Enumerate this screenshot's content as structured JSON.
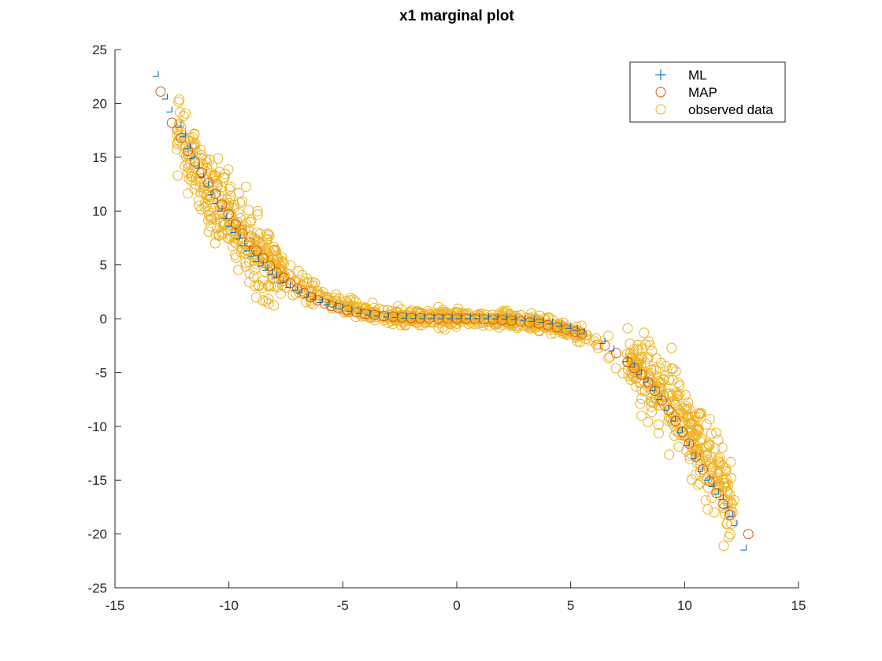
{
  "chart_data": {
    "type": "scatter",
    "title": "x1 marginal plot",
    "xlabel": "",
    "ylabel": "",
    "xlim": [
      -15,
      15
    ],
    "ylim": [
      -25,
      25
    ],
    "xticks": [
      -15,
      -10,
      -5,
      0,
      5,
      10,
      15
    ],
    "yticks": [
      -25,
      -20,
      -15,
      -10,
      -5,
      0,
      5,
      10,
      15,
      20,
      25
    ],
    "xtick_labels": [
      "-15",
      "-10",
      "-5",
      "0",
      "5",
      "10",
      "15"
    ],
    "ytick_labels": [
      "-25",
      "-20",
      "-15",
      "-10",
      "-5",
      "0",
      "5",
      "10",
      "15",
      "20",
      "25"
    ],
    "grid": false,
    "legend_position": "top-right",
    "series": [
      {
        "name": "ML",
        "marker": "plus",
        "color": "#0072BD",
        "points": [
          [
            -13.1,
            22.5
          ],
          [
            -12.7,
            20.4
          ],
          [
            -12.5,
            19.2
          ],
          [
            -12.1,
            17.8
          ],
          [
            -11.9,
            16.9
          ],
          [
            -11.7,
            15.8
          ],
          [
            -11.5,
            14.9
          ],
          [
            -11.3,
            14.0
          ],
          [
            -11.1,
            13.1
          ],
          [
            -10.9,
            12.3
          ],
          [
            -10.7,
            11.5
          ],
          [
            -10.5,
            10.7
          ],
          [
            -10.3,
            10.0
          ],
          [
            -10.1,
            9.3
          ],
          [
            -9.9,
            8.6
          ],
          [
            -9.7,
            8.0
          ],
          [
            -9.5,
            7.4
          ],
          [
            -9.3,
            6.8
          ],
          [
            -9.1,
            6.3
          ],
          [
            -8.9,
            5.8
          ],
          [
            -8.7,
            5.3
          ],
          [
            -8.5,
            4.9
          ],
          [
            -8.3,
            4.5
          ],
          [
            -8.1,
            4.1
          ],
          [
            -7.9,
            3.8
          ],
          [
            -7.6,
            3.3
          ],
          [
            -7.3,
            2.9
          ],
          [
            -7.0,
            2.6
          ],
          [
            -6.8,
            2.4
          ],
          [
            -6.5,
            2.0
          ],
          [
            -6.2,
            1.8
          ],
          [
            -5.9,
            1.5
          ],
          [
            -5.6,
            1.3
          ],
          [
            -5.3,
            1.1
          ],
          [
            -5.0,
            0.9
          ],
          [
            -4.6,
            0.7
          ],
          [
            -4.2,
            0.5
          ],
          [
            -3.8,
            0.35
          ],
          [
            -3.4,
            0.25
          ],
          [
            -3.0,
            0.15
          ],
          [
            -2.6,
            0.1
          ],
          [
            -2.2,
            0.05
          ],
          [
            -1.8,
            0.02
          ],
          [
            -1.4,
            0.0
          ],
          [
            -1.0,
            0.0
          ],
          [
            -0.6,
            0.0
          ],
          [
            -0.2,
            0.0
          ],
          [
            0.2,
            0.0
          ],
          [
            0.6,
            0.0
          ],
          [
            1.0,
            0.0
          ],
          [
            1.4,
            0.0
          ],
          [
            1.8,
            -0.02
          ],
          [
            2.2,
            -0.05
          ],
          [
            2.6,
            -0.1
          ],
          [
            3.0,
            -0.15
          ],
          [
            3.4,
            -0.25
          ],
          [
            3.8,
            -0.35
          ],
          [
            4.2,
            -0.5
          ],
          [
            4.6,
            -0.7
          ],
          [
            5.0,
            -0.9
          ],
          [
            5.3,
            -1.1
          ],
          [
            5.6,
            -1.4
          ],
          [
            6.5,
            -2.3
          ],
          [
            6.9,
            -3.0
          ],
          [
            7.5,
            -4.0
          ],
          [
            7.8,
            -4.5
          ],
          [
            8.1,
            -5.2
          ],
          [
            8.4,
            -5.9
          ],
          [
            8.7,
            -6.7
          ],
          [
            9.0,
            -7.5
          ],
          [
            9.3,
            -8.5
          ],
          [
            9.6,
            -9.5
          ],
          [
            9.9,
            -10.6
          ],
          [
            10.2,
            -11.8
          ],
          [
            10.5,
            -13.0
          ],
          [
            10.8,
            -14.2
          ],
          [
            11.1,
            -15.0
          ],
          [
            11.3,
            -15.6
          ],
          [
            11.5,
            -16.3
          ],
          [
            11.7,
            -16.8
          ],
          [
            11.9,
            -17.6
          ],
          [
            12.1,
            -18.4
          ],
          [
            12.3,
            -19.2
          ],
          [
            12.7,
            -21.5
          ]
        ]
      },
      {
        "name": "MAP",
        "marker": "circle",
        "color": "#D95319",
        "points": [
          [
            -13.0,
            21.1
          ],
          [
            -12.5,
            18.2
          ],
          [
            -12.1,
            16.8
          ],
          [
            -11.8,
            15.6
          ],
          [
            -11.5,
            14.6
          ],
          [
            -11.2,
            13.6
          ],
          [
            -10.9,
            12.6
          ],
          [
            -10.6,
            11.6
          ],
          [
            -10.3,
            10.6
          ],
          [
            -10.0,
            9.7
          ],
          [
            -9.7,
            8.8
          ],
          [
            -9.4,
            7.9
          ],
          [
            -9.1,
            7.1
          ],
          [
            -8.8,
            6.3
          ],
          [
            -8.5,
            5.6
          ],
          [
            -8.2,
            4.9
          ],
          [
            -7.9,
            4.3
          ],
          [
            -7.6,
            3.8
          ],
          [
            -7.3,
            3.3
          ],
          [
            -7.0,
            2.8
          ],
          [
            -6.7,
            2.4
          ],
          [
            -6.4,
            2.0
          ],
          [
            -6.1,
            1.7
          ],
          [
            -5.8,
            1.4
          ],
          [
            -5.5,
            1.2
          ],
          [
            -5.2,
            1.0
          ],
          [
            -4.8,
            0.8
          ],
          [
            -4.4,
            0.6
          ],
          [
            -4.0,
            0.45
          ],
          [
            -3.6,
            0.35
          ],
          [
            -3.2,
            0.25
          ],
          [
            -2.8,
            0.18
          ],
          [
            -2.4,
            0.12
          ],
          [
            -2.0,
            0.08
          ],
          [
            -1.6,
            0.05
          ],
          [
            -1.2,
            0.02
          ],
          [
            -0.8,
            0.0
          ],
          [
            -0.4,
            0.0
          ],
          [
            0.0,
            0.0
          ],
          [
            0.4,
            0.0
          ],
          [
            0.8,
            -0.02
          ],
          [
            1.2,
            -0.05
          ],
          [
            1.6,
            -0.08
          ],
          [
            2.0,
            -0.12
          ],
          [
            2.4,
            -0.18
          ],
          [
            2.8,
            -0.25
          ],
          [
            3.2,
            -0.35
          ],
          [
            3.6,
            -0.45
          ],
          [
            4.0,
            -0.6
          ],
          [
            4.4,
            -0.8
          ],
          [
            4.8,
            -1.0
          ],
          [
            5.2,
            -1.2
          ],
          [
            5.5,
            -1.4
          ],
          [
            6.5,
            -2.5
          ],
          [
            7.0,
            -3.2
          ],
          [
            7.5,
            -4.0
          ],
          [
            7.8,
            -4.6
          ],
          [
            8.1,
            -5.2
          ],
          [
            8.4,
            -5.9
          ],
          [
            8.7,
            -6.7
          ],
          [
            9.0,
            -7.6
          ],
          [
            9.3,
            -8.5
          ],
          [
            9.6,
            -9.5
          ],
          [
            9.9,
            -10.5
          ],
          [
            10.2,
            -11.6
          ],
          [
            10.5,
            -12.8
          ],
          [
            10.8,
            -14.0
          ],
          [
            11.1,
            -15.1
          ],
          [
            11.4,
            -16.2
          ],
          [
            11.7,
            -17.2
          ],
          [
            12.0,
            -18.2
          ],
          [
            12.8,
            -20.0
          ]
        ]
      },
      {
        "name": "observed data",
        "marker": "circle",
        "color": "#EDB120",
        "generated": true
      }
    ]
  },
  "legend": {
    "items": [
      {
        "label": "ML",
        "marker": "plus",
        "color": "#0072BD"
      },
      {
        "label": "MAP",
        "marker": "circle",
        "color": "#D95319"
      },
      {
        "label": "observed data",
        "marker": "circle",
        "color": "#EDB120"
      }
    ]
  },
  "colors": {
    "axis": "#262626",
    "ml": "#0072BD",
    "map": "#D95319",
    "observed": "#EDB120"
  }
}
